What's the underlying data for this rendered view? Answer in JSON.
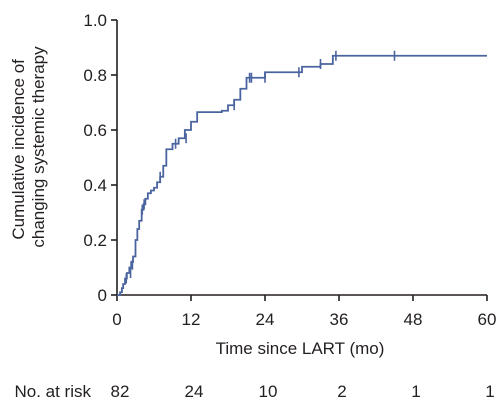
{
  "chart_data": {
    "type": "line",
    "title": "",
    "xlabel": "Time since LART (mo)",
    "ylabel_lines": [
      "Cumulative incidence of",
      "changing systemic therapy"
    ],
    "xlim": [
      0,
      60
    ],
    "ylim": [
      0,
      1.0
    ],
    "xticks": [
      0,
      12,
      24,
      36,
      48,
      60
    ],
    "yticks": [
      "0",
      "0.2",
      "0.4",
      "0.6",
      "0.8",
      "1.0"
    ],
    "ytick_values": [
      0,
      0.2,
      0.4,
      0.6,
      0.8,
      1.0
    ],
    "grid": false,
    "line_color": "#4a64a0",
    "axis_color": "#231f20",
    "series": [
      {
        "x": [
          0,
          0.5,
          0.8,
          1.0,
          1.3,
          1.6,
          2.0,
          2.3,
          2.6,
          3.0,
          3.3,
          3.6,
          4.0,
          4.3,
          4.6,
          5.0,
          5.5,
          6.0,
          6.5,
          7.0,
          7.5,
          8.0,
          9.0,
          10.0,
          11.0,
          12.0,
          13.0,
          15.0,
          17.0,
          18.0,
          19.0,
          20.0,
          21.0,
          22.5,
          24.0,
          26.0,
          28.0,
          30.0,
          33.0,
          35.0,
          45.0,
          60.0
        ],
        "y": [
          0,
          0.01,
          0.025,
          0.04,
          0.06,
          0.08,
          0.1,
          0.12,
          0.14,
          0.2,
          0.24,
          0.27,
          0.31,
          0.33,
          0.35,
          0.37,
          0.38,
          0.39,
          0.41,
          0.43,
          0.47,
          0.53,
          0.55,
          0.57,
          0.6,
          0.63,
          0.665,
          0.665,
          0.67,
          0.69,
          0.71,
          0.75,
          0.79,
          0.79,
          0.81,
          0.81,
          0.81,
          0.83,
          0.84,
          0.87,
          0.87,
          0.87
        ]
      }
    ],
    "censor_marks": [
      {
        "x": 1.5,
        "y": 0.06
      },
      {
        "x": 2.2,
        "y": 0.08
      },
      {
        "x": 2.5,
        "y": 0.11
      },
      {
        "x": 4.1,
        "y": 0.31
      },
      {
        "x": 4.4,
        "y": 0.33
      },
      {
        "x": 7.0,
        "y": 0.43
      },
      {
        "x": 9.5,
        "y": 0.55
      },
      {
        "x": 11.2,
        "y": 0.57
      },
      {
        "x": 19.0,
        "y": 0.69
      },
      {
        "x": 21.5,
        "y": 0.79
      },
      {
        "x": 21.8,
        "y": 0.79
      },
      {
        "x": 24.0,
        "y": 0.79
      },
      {
        "x": 29.5,
        "y": 0.81
      },
      {
        "x": 33.0,
        "y": 0.84
      },
      {
        "x": 35.5,
        "y": 0.87
      },
      {
        "x": 45.0,
        "y": 0.87
      }
    ],
    "at_risk": {
      "label": "No. at risk",
      "values": [
        "82",
        "24",
        "10",
        "2",
        "1",
        "1"
      ]
    }
  }
}
